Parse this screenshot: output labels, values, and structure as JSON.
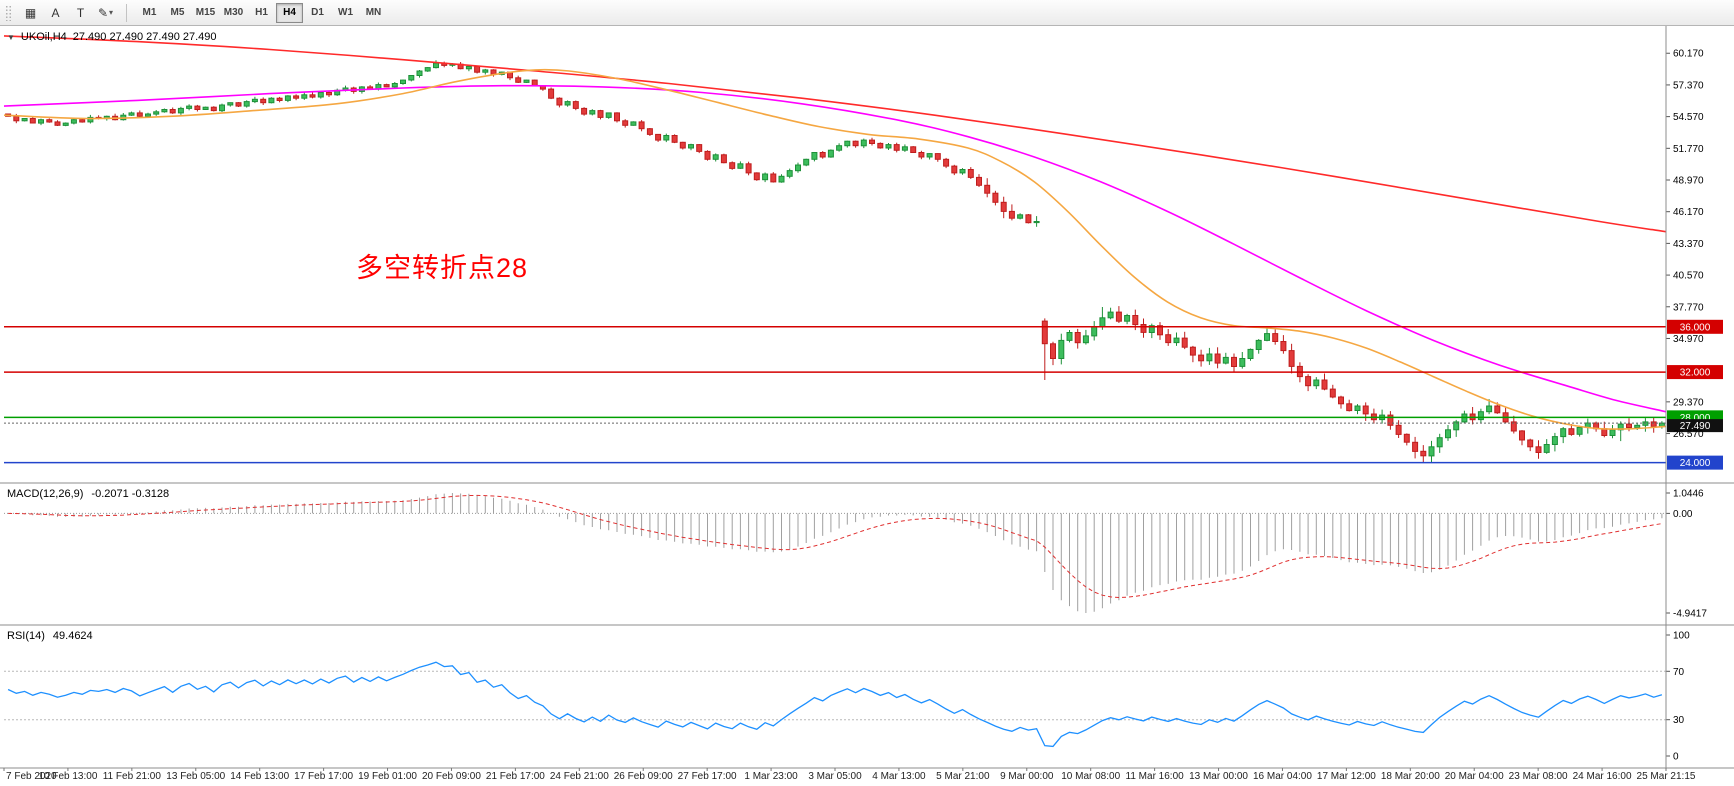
{
  "toolbar": {
    "tools": [
      {
        "id": "grid",
        "glyph": "▦"
      },
      {
        "id": "arrow-a",
        "glyph": "A"
      },
      {
        "id": "text",
        "glyph": "T"
      },
      {
        "id": "draw",
        "glyph": "✎",
        "caret": "▾"
      }
    ],
    "timeframes": [
      "M1",
      "M5",
      "M15",
      "M30",
      "H1",
      "H4",
      "D1",
      "W1",
      "MN"
    ],
    "active_timeframe": "H4"
  },
  "price_panel": {
    "dropdown_glyph": "▼",
    "symbol_header": "UKOil,H4",
    "ohlc": "27.490 27.490 27.490 27.490",
    "annotation": {
      "text": "多空转折点28",
      "color": "#ff0000"
    }
  },
  "macd_panel": {
    "header": "MACD(12,26,9)",
    "values": "-0.2071 -0.3128",
    "axis_labels": {
      "max": "1.0446",
      "zero": "0.00",
      "min": "-4.9417"
    }
  },
  "rsi_panel": {
    "header": "RSI(14)",
    "value": "49.4624",
    "axis_ticks": [
      "100",
      "70",
      "30",
      "0"
    ]
  },
  "chart_data": {
    "type": "candlestick",
    "symbol": "UKOil",
    "timeframe": "H4",
    "title": "UKOil H4 with MACD(12,26,9) and RSI(14)",
    "current_price": 27.49,
    "current_price_label": "27.490",
    "price_range": {
      "min": 22.2,
      "max": 62.4
    },
    "y_axis_ticks": [
      60.17,
      57.37,
      54.57,
      51.77,
      48.97,
      46.17,
      43.37,
      40.57,
      37.77,
      34.97,
      29.37,
      26.57
    ],
    "level_lines": [
      {
        "value": 36.0,
        "label": "36.000",
        "color": "#d40000"
      },
      {
        "value": 32.0,
        "label": "32.000",
        "color": "#d40000"
      },
      {
        "value": 28.0,
        "label": "28.000",
        "color": "#009f00"
      },
      {
        "value": 24.0,
        "label": "24.000",
        "color": "#2244cc"
      }
    ],
    "closes": [
      54.6,
      54.2,
      54.4,
      54.0,
      54.3,
      54.1,
      53.8,
      54.0,
      54.3,
      54.1,
      54.5,
      54.4,
      54.6,
      54.3,
      54.7,
      54.9,
      54.6,
      54.8,
      55.0,
      55.2,
      54.9,
      55.3,
      55.5,
      55.2,
      55.4,
      55.1,
      55.6,
      55.8,
      55.5,
      55.9,
      56.1,
      55.8,
      56.2,
      56.0,
      56.4,
      56.2,
      56.5,
      56.3,
      56.7,
      56.5,
      56.9,
      57.1,
      56.8,
      57.2,
      57.0,
      57.4,
      57.2,
      57.5,
      57.8,
      58.2,
      58.6,
      58.9,
      59.3,
      59.1,
      59.2,
      58.8,
      59.0,
      58.5,
      58.7,
      58.3,
      58.5,
      58.0,
      57.6,
      57.8,
      57.3,
      57.0,
      56.2,
      55.6,
      55.9,
      55.3,
      54.8,
      55.1,
      54.5,
      54.9,
      54.2,
      53.8,
      54.1,
      53.5,
      53.0,
      52.5,
      52.9,
      52.3,
      51.8,
      52.1,
      51.5,
      50.8,
      51.2,
      50.5,
      50.0,
      50.4,
      49.6,
      49.0,
      49.5,
      48.8,
      49.3,
      49.8,
      50.3,
      50.8,
      51.4,
      51.0,
      51.6,
      52.0,
      52.4,
      52.0,
      52.5,
      52.2,
      51.8,
      52.1,
      51.6,
      51.9,
      51.4,
      51.0,
      51.3,
      50.8,
      50.2,
      49.6,
      49.9,
      49.2,
      48.5,
      47.8,
      47.0,
      46.2,
      45.6,
      45.9,
      45.2,
      45.3,
      34.5,
      33.2,
      34.8,
      35.5,
      34.6,
      35.2,
      36.0,
      36.8,
      37.3,
      36.5,
      37.0,
      36.2,
      35.5,
      36.1,
      35.3,
      34.6,
      35.0,
      34.2,
      33.5,
      33.0,
      33.6,
      32.8,
      33.3,
      32.5,
      33.2,
      34.0,
      34.8,
      35.4,
      34.7,
      33.9,
      32.5,
      31.6,
      30.8,
      31.3,
      30.5,
      29.8,
      29.2,
      28.6,
      29.0,
      28.3,
      27.8,
      28.2,
      27.3,
      26.5,
      25.8,
      25.0,
      24.6,
      25.4,
      26.2,
      26.9,
      27.6,
      28.3,
      27.8,
      28.5,
      29.0,
      28.4,
      27.6,
      26.8,
      26.0,
      25.4,
      24.9,
      25.6,
      26.3,
      27.0,
      26.5,
      27.1,
      27.5,
      27.0,
      26.4,
      26.9,
      27.4,
      27.1,
      27.3,
      27.6,
      27.2,
      27.49
    ],
    "candle_overrides": {
      "0": {
        "open": 54.8
      },
      "52": {
        "high": 59.55
      },
      "126": {
        "open": 36.5,
        "low": 31.3
      },
      "133": {
        "high": 37.75
      },
      "171": {
        "low": 24.4
      },
      "172": {
        "low": 24.2
      },
      "186": {
        "low": 24.6
      },
      "196": {
        "low": 25.9
      }
    },
    "ma_lines": [
      {
        "name": "ma-slow",
        "color": "#ff2a2a",
        "points": [
          [
            0,
            61.7
          ],
          [
            0.08,
            61.2
          ],
          [
            0.16,
            60.5
          ],
          [
            0.24,
            59.6
          ],
          [
            0.32,
            58.6
          ],
          [
            0.4,
            57.5
          ],
          [
            0.48,
            56.2
          ],
          [
            0.56,
            54.7
          ],
          [
            0.64,
            53.0
          ],
          [
            0.72,
            51.2
          ],
          [
            0.8,
            49.3
          ],
          [
            0.88,
            47.3
          ],
          [
            0.96,
            45.3
          ],
          [
            1.0,
            44.4
          ]
        ]
      },
      {
        "name": "ma-medium",
        "color": "#ff00ff",
        "points": [
          [
            0,
            55.5
          ],
          [
            0.08,
            56.0
          ],
          [
            0.16,
            56.6
          ],
          [
            0.24,
            57.1
          ],
          [
            0.3,
            57.3
          ],
          [
            0.36,
            57.2
          ],
          [
            0.42,
            56.7
          ],
          [
            0.48,
            55.7
          ],
          [
            0.54,
            54.2
          ],
          [
            0.58,
            52.8
          ],
          [
            0.62,
            51.0
          ],
          [
            0.66,
            48.8
          ],
          [
            0.7,
            46.2
          ],
          [
            0.74,
            43.3
          ],
          [
            0.78,
            40.3
          ],
          [
            0.82,
            37.4
          ],
          [
            0.86,
            34.8
          ],
          [
            0.9,
            32.6
          ],
          [
            0.94,
            30.8
          ],
          [
            0.97,
            29.5
          ],
          [
            1.0,
            28.5
          ]
        ]
      },
      {
        "name": "ma-fast",
        "color": "#f5a742",
        "points": [
          [
            0,
            54.7
          ],
          [
            0.05,
            54.4
          ],
          [
            0.1,
            54.6
          ],
          [
            0.15,
            55.1
          ],
          [
            0.2,
            55.7
          ],
          [
            0.24,
            56.6
          ],
          [
            0.27,
            57.6
          ],
          [
            0.3,
            58.4
          ],
          [
            0.32,
            58.7
          ],
          [
            0.34,
            58.6
          ],
          [
            0.37,
            57.9
          ],
          [
            0.4,
            56.9
          ],
          [
            0.43,
            55.8
          ],
          [
            0.46,
            54.7
          ],
          [
            0.49,
            53.7
          ],
          [
            0.52,
            53.0
          ],
          [
            0.55,
            52.6
          ],
          [
            0.58,
            51.8
          ],
          [
            0.6,
            50.6
          ],
          [
            0.62,
            48.8
          ],
          [
            0.64,
            46.2
          ],
          [
            0.66,
            43.2
          ],
          [
            0.68,
            40.4
          ],
          [
            0.7,
            38.2
          ],
          [
            0.72,
            36.8
          ],
          [
            0.74,
            36.1
          ],
          [
            0.76,
            35.9
          ],
          [
            0.78,
            35.6
          ],
          [
            0.8,
            35.0
          ],
          [
            0.82,
            34.1
          ],
          [
            0.84,
            32.9
          ],
          [
            0.86,
            31.6
          ],
          [
            0.88,
            30.3
          ],
          [
            0.9,
            29.1
          ],
          [
            0.92,
            28.1
          ],
          [
            0.94,
            27.4
          ],
          [
            0.96,
            27.0
          ],
          [
            0.98,
            27.0
          ],
          [
            1.0,
            27.2
          ]
        ]
      }
    ],
    "macd": {
      "fast": 12,
      "slow": 26,
      "signal": 9
    },
    "rsi": {
      "period": 14,
      "levels": [
        70,
        30
      ]
    },
    "time_axis_labels": [
      "7 Feb 2020",
      "10 Feb 13:00",
      "11 Feb 21:00",
      "13 Feb 05:00",
      "14 Feb 13:00",
      "17 Feb 17:00",
      "19 Feb 01:00",
      "20 Feb 09:00",
      "21 Feb 17:00",
      "24 Feb 21:00",
      "26 Feb 09:00",
      "27 Feb 17:00",
      "1 Mar 23:00",
      "3 Mar 05:00",
      "4 Mar 13:00",
      "5 Mar 21:00",
      "9 Mar 00:00",
      "10 Mar 08:00",
      "11 Mar 16:00",
      "13 Mar 00:00",
      "16 Mar 04:00",
      "17 Mar 12:00",
      "18 Mar 20:00",
      "20 Mar 04:00",
      "23 Mar 08:00",
      "24 Mar 16:00",
      "25 Mar 21:15"
    ]
  }
}
